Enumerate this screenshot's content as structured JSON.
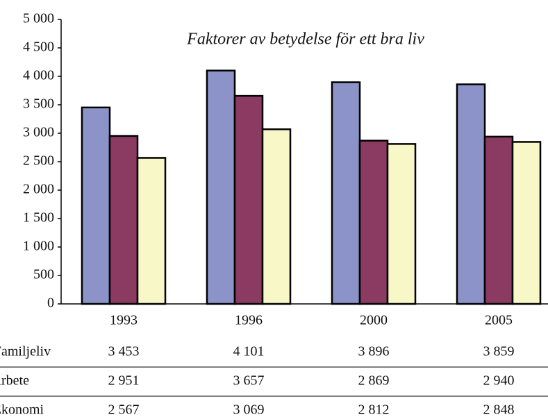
{
  "chart_data": {
    "type": "bar",
    "title": "Faktorer av betydelse för ett bra liv",
    "categories": [
      "1993",
      "1996",
      "2000",
      "2005"
    ],
    "series": [
      {
        "name": "Familjeliv",
        "color": "#8b93c8",
        "values": [
          3453,
          4101,
          3896,
          3859
        ],
        "value_labels": [
          "3 453",
          "4 101",
          "3 896",
          "3 859"
        ]
      },
      {
        "name": "Arbete",
        "color": "#8b3a62",
        "values": [
          2951,
          3657,
          2869,
          2940
        ],
        "value_labels": [
          "2 951",
          "3 657",
          "2 869",
          "2 940"
        ]
      },
      {
        "name": "Ekonomi",
        "color": "#f7f7c8",
        "values": [
          2567,
          3069,
          2812,
          2848
        ],
        "value_labels": [
          "2 567",
          "3 069",
          "2 812",
          "2 848"
        ]
      }
    ],
    "ylim": [
      0,
      5000
    ],
    "yticks": [
      0,
      500,
      {
        "value": 1000,
        "label": "1 000"
      },
      {
        "value": 1500,
        "label": "1 500"
      },
      {
        "value": 2000,
        "label": "2 000"
      },
      {
        "value": 2500,
        "label": "2 500"
      },
      {
        "value": 3000,
        "label": "3 000"
      },
      {
        "value": 3500,
        "label": "3 500"
      },
      {
        "value": 4000,
        "label": "4 000"
      },
      {
        "value": 4500,
        "label": "4 500"
      },
      {
        "value": 5000,
        "label": "5 000"
      }
    ],
    "grid": false
  }
}
